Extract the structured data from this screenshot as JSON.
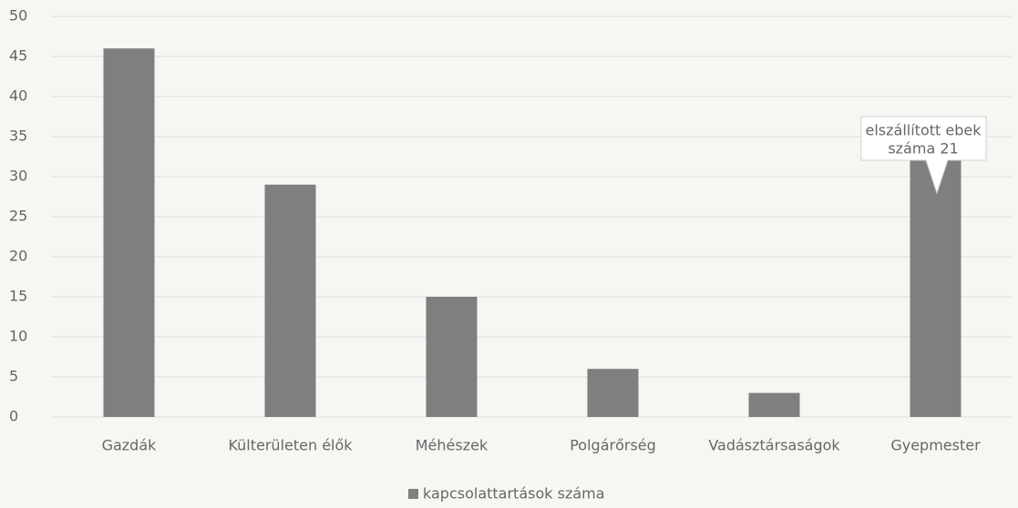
{
  "chart_data": {
    "type": "bar",
    "categories": [
      "Gazdák",
      "Külterületen élők",
      "Méhészek",
      "Polgárőrség",
      "Vadásztársaságok",
      "Gyepmester"
    ],
    "series": [
      {
        "name": "kapcsolattartások száma",
        "color": "#7f7f7f",
        "values": [
          46,
          29,
          15,
          6,
          3,
          32
        ]
      }
    ],
    "ylim": [
      0,
      50
    ],
    "yticks": [
      0,
      5,
      10,
      15,
      20,
      25,
      30,
      35,
      40,
      45,
      50
    ],
    "grid": true,
    "annotation": [
      "elszállított ebek",
      "száma 21"
    ],
    "legend": "bottom"
  }
}
